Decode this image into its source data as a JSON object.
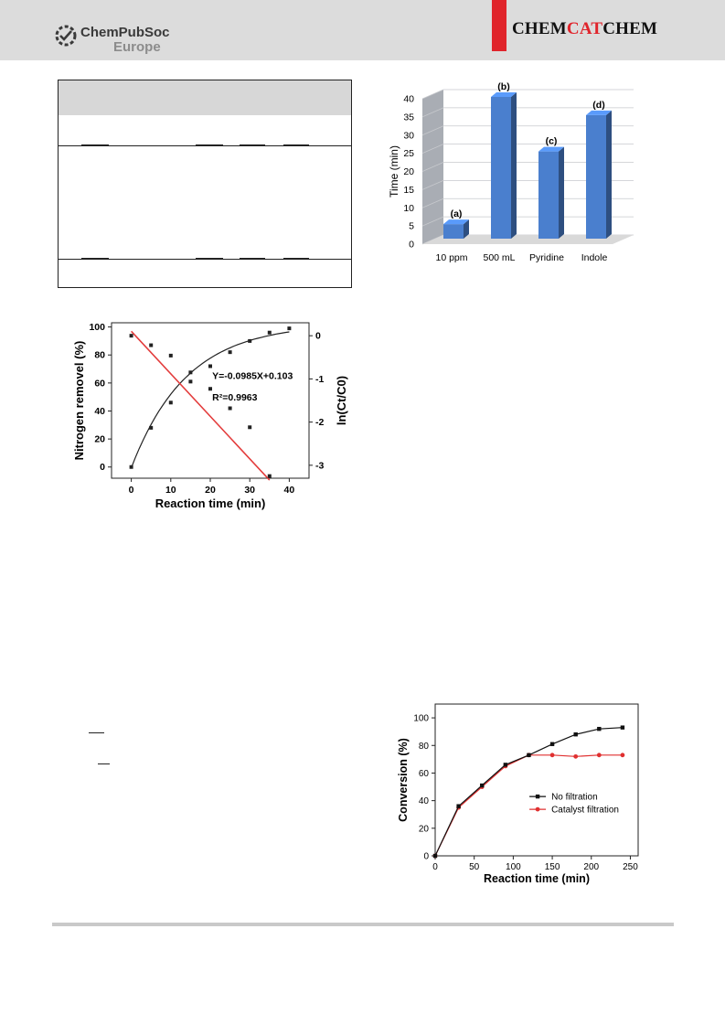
{
  "header": {
    "publisher_line1": "ChemPubSoc",
    "publisher_line2": "Europe",
    "journal_part1": "CHEM",
    "journal_part2": "CAT",
    "journal_part3": "CHEM",
    "accent_color": "#e0242b",
    "band_color": "#dcdcdc",
    "logo_icon": "chempubsoc-logo-icon"
  },
  "charts": [
    {
      "type": "bar",
      "title": "",
      "xlabel": "",
      "ylabel": "Time (min)",
      "ylim": [
        0,
        40
      ],
      "yticks": [
        0,
        5,
        10,
        15,
        20,
        25,
        30,
        35,
        40
      ],
      "categories": [
        "10 ppm",
        "500 mL",
        "Pyridine",
        "Indole"
      ],
      "values": [
        5,
        40,
        25,
        35
      ],
      "bar_labels": [
        "(a)",
        "(b)",
        "(c)",
        "(d)"
      ],
      "grid": true,
      "bar_color": "#4a7fce"
    },
    {
      "type": "scatter",
      "title": "",
      "xlabel": "Reaction time (min)",
      "ylabel_left": "Nitrogen removel (%)",
      "ylabel_right": "ln(Ct/C0)",
      "xlim": [
        -5,
        45
      ],
      "ylim_left": [
        -8,
        103
      ],
      "ylim_right": [
        -3.3,
        0.3
      ],
      "xticks": [
        0,
        10,
        20,
        30,
        40
      ],
      "yticks_left": [
        0,
        20,
        40,
        60,
        80,
        100
      ],
      "yticks_right": [
        0,
        -1,
        -2,
        -3
      ],
      "annotation_line1": "Y=-0.0985X+0.103",
      "annotation_line2": "R²=0.9963",
      "series": [
        {
          "axis": "left",
          "color": "#222222",
          "x": [
            0,
            5,
            10,
            15,
            20,
            25,
            30,
            35,
            40
          ],
          "y": [
            0,
            28,
            46,
            61,
            72,
            82,
            90,
            96,
            99
          ],
          "fit_curve": true
        },
        {
          "axis": "right",
          "color": "#e33c3c",
          "x": [
            0,
            5,
            10,
            15,
            20,
            25,
            30,
            35
          ],
          "y": [
            0.0,
            -0.22,
            -0.46,
            -0.85,
            -1.23,
            -1.68,
            -2.12,
            -3.25
          ],
          "fit_line": {
            "slope": -0.0985,
            "intercept": 0.103,
            "x": [
              0,
              35
            ]
          }
        }
      ]
    },
    {
      "type": "line",
      "title": "",
      "xlabel": "Reaction time (min)",
      "ylabel": "Conversion (%)",
      "xlim": [
        0,
        260
      ],
      "ylim": [
        0,
        110
      ],
      "xticks": [
        0,
        50,
        100,
        150,
        200,
        250
      ],
      "yticks": [
        0,
        20,
        40,
        60,
        80,
        100
      ],
      "legend_position": "center-right",
      "series": [
        {
          "name": "No filtration",
          "color": "#111111",
          "marker": "square",
          "x": [
            0,
            30,
            60,
            90,
            120,
            150,
            180,
            210,
            240
          ],
          "y": [
            0,
            36,
            51,
            66,
            73,
            81,
            88,
            92,
            93
          ]
        },
        {
          "name": "Catalyst filtration",
          "color": "#e03030",
          "marker": "circle",
          "x": [
            0,
            30,
            60,
            90,
            120,
            150,
            180,
            210,
            240
          ],
          "y": [
            0,
            35,
            50,
            65,
            73,
            73,
            72,
            73,
            73
          ]
        }
      ]
    }
  ]
}
